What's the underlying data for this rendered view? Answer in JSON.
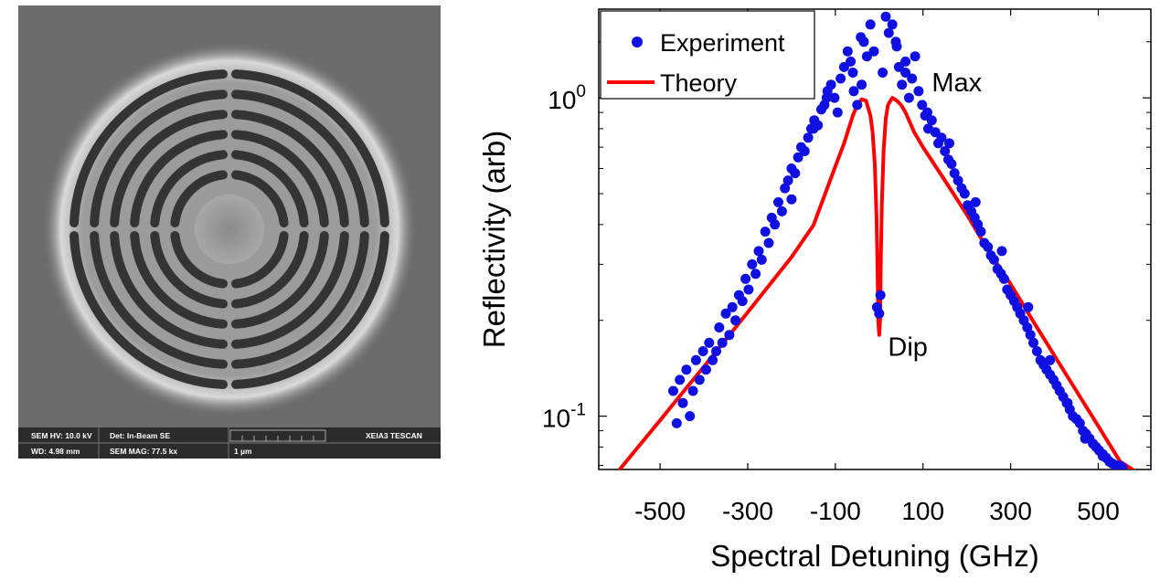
{
  "sem": {
    "hv": "SEM HV: 10.0 kV",
    "det": "Det: In-Beam SE",
    "brand": "XEIA3 TESCAN",
    "wd": "WD: 4.98 mm",
    "mag": "SEM MAG: 77.5 kx",
    "scale": "1 µm"
  },
  "colors": {
    "experiment": "#1010e0",
    "theory": "#ff0000"
  },
  "chart_data": {
    "type": "scatter",
    "title": "",
    "xlabel": "Spectral Detuning (GHz)",
    "ylabel": "Reflectivity (arb)",
    "yscale": "log",
    "xlim": [
      -640,
      620
    ],
    "ylim": [
      0.068,
      1.9
    ],
    "xticks": [
      -500,
      -300,
      -100,
      100,
      300,
      500
    ],
    "xtick_labels": [
      "-500",
      "-300",
      "-100",
      "100",
      "300",
      "500"
    ],
    "ytick_values": [
      0.1,
      1
    ],
    "ytick_bases": [
      "10",
      "10"
    ],
    "ytick_exponents": [
      "-1",
      "0"
    ],
    "legend": {
      "position": "top-left",
      "entries": [
        "Experiment",
        "Theory"
      ]
    },
    "annotations": [
      {
        "text": "Max",
        "x": 120,
        "y": 1.05
      },
      {
        "text": "Dip",
        "x": 20,
        "y": 0.155
      }
    ],
    "series": [
      {
        "name": "Experiment",
        "style": "markers",
        "x": [
          -470,
          -462,
          -455,
          -448,
          -440,
          -432,
          -425,
          -418,
          -410,
          -402,
          -395,
          -388,
          -380,
          -372,
          -365,
          -358,
          -350,
          -342,
          -335,
          -328,
          -320,
          -312,
          -305,
          -298,
          -290,
          -282,
          -275,
          -268,
          -260,
          -252,
          -245,
          -238,
          -230,
          -222,
          -215,
          -208,
          -200,
          -192,
          -185,
          -178,
          -170,
          -162,
          -155,
          -148,
          -140,
          -132,
          -125,
          -118,
          -110,
          -102,
          -95,
          -88,
          -80,
          -72,
          -65,
          -58,
          -50,
          -42,
          -35,
          -28,
          -20,
          -12,
          -5,
          0,
          3,
          8,
          15,
          22,
          30,
          38,
          45,
          52,
          60,
          68,
          75,
          82,
          90,
          98,
          105,
          112,
          120,
          128,
          135,
          142,
          150,
          158,
          165,
          172,
          180,
          188,
          195,
          202,
          210,
          218,
          225,
          232,
          240,
          248,
          255,
          262,
          270,
          278,
          285,
          292,
          300,
          308,
          315,
          322,
          330,
          338,
          345,
          352,
          360,
          368,
          375,
          382,
          390,
          398,
          405,
          412,
          420,
          428,
          435,
          442,
          450,
          458,
          465,
          472,
          480,
          488,
          495,
          502,
          510,
          518,
          525,
          532,
          540,
          548,
          555,
          -200,
          -150,
          -120,
          -60,
          -40,
          40,
          60,
          110,
          160,
          220,
          280,
          340,
          390,
          430,
          470,
          510,
          540
        ],
        "y": [
          0.12,
          0.095,
          0.13,
          0.11,
          0.14,
          0.1,
          0.12,
          0.15,
          0.13,
          0.16,
          0.14,
          0.17,
          0.15,
          0.16,
          0.19,
          0.17,
          0.21,
          0.18,
          0.22,
          0.2,
          0.24,
          0.23,
          0.27,
          0.25,
          0.3,
          0.28,
          0.33,
          0.31,
          0.38,
          0.35,
          0.42,
          0.4,
          0.47,
          0.44,
          0.52,
          0.55,
          0.6,
          0.58,
          0.65,
          0.7,
          0.68,
          0.75,
          0.8,
          0.85,
          0.82,
          0.92,
          0.95,
          1.05,
          1.1,
          1.0,
          0.9,
          1.15,
          1.25,
          1.4,
          1.3,
          1.05,
          0.95,
          1.55,
          1.5,
          1.35,
          1.7,
          1.4,
          0.22,
          0.21,
          0.24,
          1.2,
          1.8,
          1.6,
          1.7,
          1.5,
          1.25,
          1.1,
          1.3,
          1.0,
          1.15,
          1.35,
          1.05,
          0.95,
          0.88,
          0.8,
          0.85,
          0.78,
          0.72,
          0.75,
          0.68,
          0.64,
          0.62,
          0.58,
          0.55,
          0.52,
          0.5,
          0.46,
          0.44,
          0.42,
          0.4,
          0.38,
          0.35,
          0.34,
          0.32,
          0.31,
          0.29,
          0.28,
          0.27,
          0.25,
          0.24,
          0.23,
          0.22,
          0.21,
          0.2,
          0.19,
          0.18,
          0.17,
          0.16,
          0.15,
          0.145,
          0.14,
          0.135,
          0.13,
          0.125,
          0.12,
          0.115,
          0.11,
          0.105,
          0.1,
          0.098,
          0.095,
          0.09,
          0.088,
          0.085,
          0.082,
          0.08,
          0.078,
          0.076,
          0.074,
          0.072,
          0.071,
          0.07,
          0.07,
          0.069,
          0.48,
          0.8,
          1.0,
          1.2,
          1.1,
          1.45,
          1.2,
          0.9,
          0.72,
          0.47,
          0.33,
          0.22,
          0.15,
          0.11,
          0.085,
          0.075,
          0.07
        ]
      },
      {
        "name": "Theory",
        "style": "line",
        "x": [
          -600,
          -550,
          -500,
          -450,
          -400,
          -350,
          -300,
          -250,
          -200,
          -150,
          -100,
          -80,
          -60,
          -50,
          -40,
          -30,
          -20,
          -15,
          -10,
          -6,
          -4,
          -2,
          0,
          2,
          4,
          6,
          10,
          15,
          20,
          30,
          40,
          50,
          60,
          80,
          100,
          150,
          200,
          250,
          300,
          350,
          400,
          450,
          500,
          550,
          600
        ],
        "y": [
          0.066,
          0.08,
          0.097,
          0.118,
          0.143,
          0.174,
          0.212,
          0.259,
          0.316,
          0.398,
          0.61,
          0.72,
          0.88,
          0.95,
          0.99,
          0.98,
          0.88,
          0.78,
          0.62,
          0.42,
          0.3,
          0.2,
          0.18,
          0.2,
          0.32,
          0.46,
          0.68,
          0.86,
          0.95,
          1.0,
          0.98,
          0.95,
          0.9,
          0.78,
          0.7,
          0.55,
          0.43,
          0.33,
          0.26,
          0.2,
          0.155,
          0.12,
          0.093,
          0.072,
          0.065
        ]
      }
    ]
  }
}
